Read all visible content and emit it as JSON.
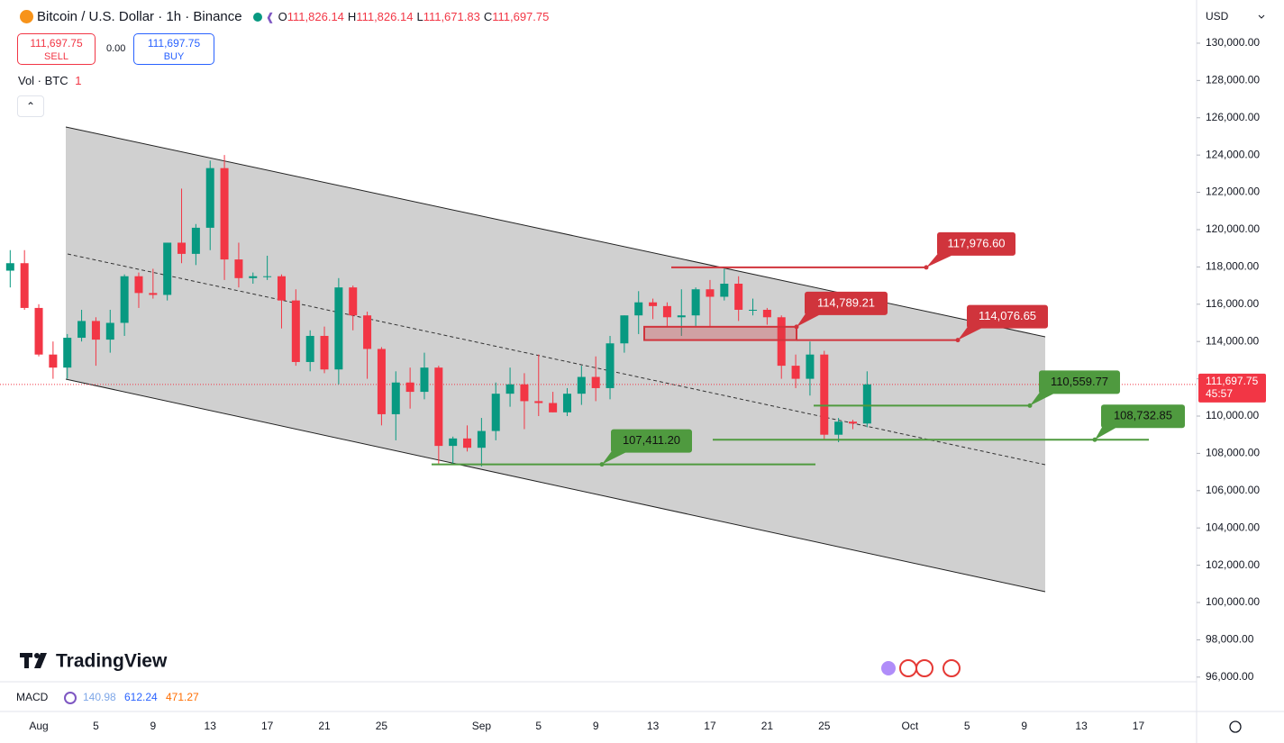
{
  "header": {
    "title": "Bitcoin / U.S. Dollar · 1h · Binance",
    "ohlc": [
      {
        "key": "O",
        "value": "111,826.14"
      },
      {
        "key": "H",
        "value": "111,826.14"
      },
      {
        "key": "L",
        "value": "111,671.83"
      },
      {
        "key": "C",
        "value": "111,697.75"
      }
    ]
  },
  "trade": {
    "sell_price": "111,697.75",
    "sell": "SELL",
    "spread": "0.00",
    "buy_price": "111,697.75",
    "buy": "BUY"
  },
  "volume_legend": {
    "name": "Vol · BTC",
    "value": "1"
  },
  "currency": "USD",
  "indicator": {
    "name": "MACD",
    "values": [
      "140.98",
      "612.24",
      "471.27"
    ]
  },
  "logo": "TradingView",
  "chart_data": {
    "type": "candlestick",
    "categories": [
      null,
      null,
      "Aug",
      null,
      null,
      null,
      "5",
      null,
      null,
      null,
      "9",
      null,
      null,
      null,
      "13",
      null,
      null,
      null,
      "17",
      null,
      null,
      null,
      "21",
      null,
      null,
      null,
      "25",
      null,
      null,
      null,
      null,
      null,
      null,
      "Sep",
      null,
      null,
      null,
      "5",
      null,
      null,
      null,
      "9",
      null,
      null,
      null,
      "13",
      null,
      null,
      null,
      "17",
      null,
      null,
      null,
      "21",
      null,
      null,
      null,
      "25",
      null,
      null,
      null,
      null,
      null,
      "Oct",
      null,
      null,
      null,
      "5",
      null,
      null,
      null,
      "9",
      null,
      null,
      null,
      "13",
      null,
      null,
      null,
      "17",
      null
    ],
    "open": [
      117800,
      118200,
      115800,
      113300,
      112600,
      114200,
      115100,
      114100,
      115000,
      117500,
      116600,
      116500,
      119300,
      118700,
      120100,
      123300,
      118400,
      117400,
      117500,
      117500,
      116200,
      112900,
      114300,
      112500,
      116900,
      115400,
      113600,
      110100,
      111800,
      111300,
      112600,
      108400,
      108800,
      108300,
      109200,
      111200,
      111700,
      110800,
      110700,
      110200,
      111200,
      112100,
      111500,
      113900,
      115400,
      116100,
      115900,
      115300,
      115400,
      116800,
      116400,
      117100,
      115700,
      115700,
      115300,
      112700,
      112000,
      113300,
      109000,
      109700,
      109600,
      null,
      null,
      null,
      null,
      null,
      null,
      null,
      null,
      null,
      null,
      null,
      null,
      null,
      null,
      null,
      null,
      null,
      null,
      null,
      null
    ],
    "high": [
      118900,
      118900,
      116000,
      114000,
      114400,
      115700,
      115300,
      115700,
      117600,
      117700,
      117900,
      119300,
      122200,
      120300,
      123700,
      124000,
      119300,
      117700,
      118600,
      117600,
      116800,
      114600,
      114800,
      117400,
      117000,
      115600,
      113700,
      112400,
      112600,
      113400,
      112700,
      108900,
      109500,
      109900,
      111800,
      112600,
      112300,
      113300,
      111300,
      111500,
      112700,
      113200,
      114300,
      115400,
      116700,
      116300,
      116100,
      116800,
      116900,
      117300,
      117900,
      117500,
      116300,
      115800,
      115400,
      113300,
      114000,
      113500,
      109900,
      109800,
      112400,
      null,
      null,
      null,
      null,
      null,
      null,
      null,
      null,
      null,
      null,
      null,
      null,
      null,
      null,
      null,
      null,
      null,
      null,
      null,
      null
    ],
    "low": [
      116900,
      115700,
      113200,
      112000,
      112000,
      114000,
      112700,
      113400,
      114300,
      115800,
      116300,
      116200,
      118200,
      118100,
      118900,
      117300,
      116900,
      117100,
      117300,
      114700,
      112700,
      112400,
      112300,
      111700,
      114600,
      112000,
      109500,
      108700,
      110400,
      110900,
      107400,
      107400,
      108100,
      107300,
      108700,
      110500,
      109300,
      110000,
      110200,
      110000,
      110600,
      110800,
      110900,
      113400,
      114400,
      115200,
      114800,
      114300,
      114800,
      114800,
      116200,
      115100,
      115400,
      114900,
      112000,
      111500,
      111100,
      108700,
      108600,
      109300,
      109400,
      null,
      null,
      null,
      null,
      null,
      null,
      null,
      null,
      null,
      null,
      null,
      null,
      null,
      null,
      null,
      null,
      null,
      null,
      null,
      null
    ],
    "close": [
      118200,
      115800,
      113300,
      112600,
      114200,
      115100,
      114100,
      115000,
      117500,
      116600,
      116500,
      119300,
      118700,
      120100,
      123300,
      118400,
      117400,
      117500,
      117500,
      116200,
      112900,
      114300,
      112500,
      116900,
      115400,
      113600,
      110100,
      111800,
      111300,
      112600,
      108400,
      108800,
      108300,
      109200,
      111200,
      111700,
      110800,
      110700,
      110200,
      111200,
      112100,
      111500,
      113900,
      115400,
      116100,
      115900,
      115300,
      115400,
      116800,
      116400,
      117100,
      115700,
      115700,
      115300,
      112700,
      112000,
      113300,
      109000,
      109700,
      109600,
      111700,
      null,
      null,
      null,
      null,
      null,
      null,
      null,
      null,
      null,
      null,
      null,
      null,
      null,
      null,
      null,
      null,
      null,
      null,
      null,
      null
    ],
    "up_color": "#089981",
    "down_color": "#f23645",
    "ylim": [
      95750,
      131930
    ],
    "yticks": [
      {
        "value": 96000,
        "label": "96,000.00"
      },
      {
        "value": 98000,
        "label": "98,000.00"
      },
      {
        "value": 100000,
        "label": "100,000.00"
      },
      {
        "value": 102000,
        "label": "102,000.00"
      },
      {
        "value": 104000,
        "label": "104,000.00"
      },
      {
        "value": 106000,
        "label": "106,000.00"
      },
      {
        "value": 108000,
        "label": "108,000.00"
      },
      {
        "value": 110000,
        "label": "110,000.00"
      },
      {
        "value": 112000,
        "label": "112,000.00"
      },
      {
        "value": 114000,
        "label": "114,000.00"
      },
      {
        "value": 116000,
        "label": "116,000.00"
      },
      {
        "value": 118000,
        "label": "118,000.00"
      },
      {
        "value": 120000,
        "label": "120,000.00"
      },
      {
        "value": 122000,
        "label": "122,000.00"
      },
      {
        "value": 124000,
        "label": "124,000.00"
      },
      {
        "value": 126000,
        "label": "126,000.00"
      },
      {
        "value": 128000,
        "label": "128,000.00"
      },
      {
        "value": 130000,
        "label": "130,000.00"
      }
    ],
    "grid": false,
    "last_price": {
      "value": 111697.75,
      "label": "111,697.75"
    },
    "countdown": "45:57",
    "annotations": [
      {
        "value": 117976.6,
        "label": "117,976.60",
        "color": "#d0343c"
      },
      {
        "value": 114789.21,
        "label": "114,789.21",
        "color": "#d0343c"
      },
      {
        "value": 114076.65,
        "label": "114,076.65",
        "color": "#d0343c"
      },
      {
        "value": 110559.77,
        "label": "110,559.77",
        "color": "#4f9a3f"
      },
      {
        "value": 108732.85,
        "label": "108,732.85",
        "color": "#4f9a3f"
      },
      {
        "value": 107411.2,
        "label": "107,411.20",
        "color": "#4f9a3f"
      }
    ]
  }
}
